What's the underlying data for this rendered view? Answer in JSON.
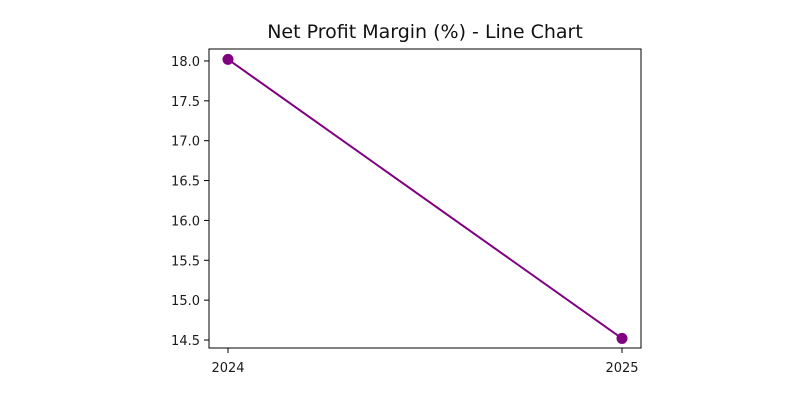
{
  "chart_data": {
    "type": "line",
    "title": "Net Profit Margin (%) - Line Chart",
    "xlabel": "",
    "ylabel": "",
    "x": [
      "2024",
      "2025"
    ],
    "series": [
      {
        "values": [
          18.02,
          14.52
        ],
        "marker": "circle"
      }
    ],
    "ylim": [
      14.4,
      18.15
    ],
    "yticks": [
      "18.0",
      "17.5",
      "17.0",
      "16.5",
      "16.0",
      "15.5",
      "15.0",
      "14.5"
    ],
    "grid": false,
    "colors": {
      "line": "#800080",
      "axis": "#000000",
      "text": "#1a1a1a"
    }
  }
}
